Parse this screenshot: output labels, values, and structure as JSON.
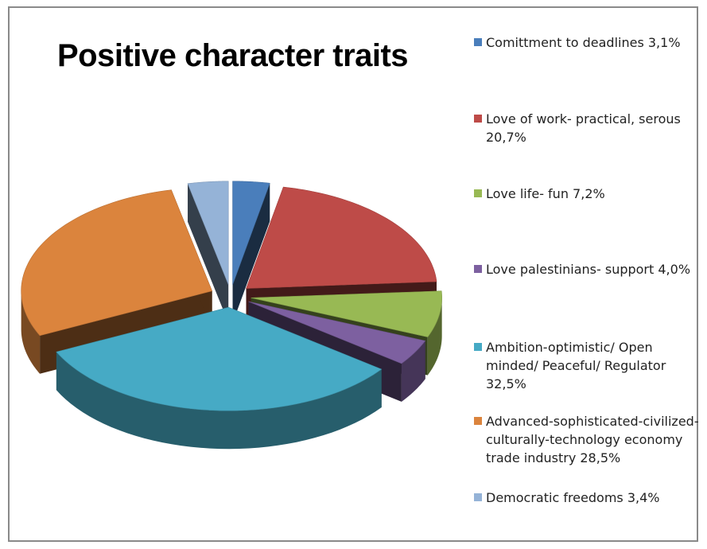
{
  "chart_data": {
    "type": "pie",
    "title": "Positive character traits",
    "three_d": true,
    "exploded": true,
    "legend_position": "right",
    "slices": [
      {
        "label": "Comittment to deadlines 3,1%",
        "value": 3.1,
        "color": "#4A7EBB"
      },
      {
        "label": "Love of work- practical, serous 20,7%",
        "value": 20.7,
        "color": "#BE4B48"
      },
      {
        "label": "Love life- fun 7,2%",
        "value": 7.2,
        "color": "#98B954"
      },
      {
        "label": "Love palestinians- support 4,0%",
        "value": 4.0,
        "color": "#7D60A0"
      },
      {
        "label": "Ambition-optimistic/ Open minded/ Peaceful/ Regulator 32,5%",
        "value": 32.5,
        "color": "#46AAC5"
      },
      {
        "label": "Advanced-sophisticated-civilized-culturally-technology economy trade industry 28,5%",
        "value": 28.5,
        "color": "#DB843D"
      },
      {
        "label": "Democratic freedoms 3,4%",
        "value": 3.4,
        "color": "#95B3D7"
      }
    ]
  }
}
